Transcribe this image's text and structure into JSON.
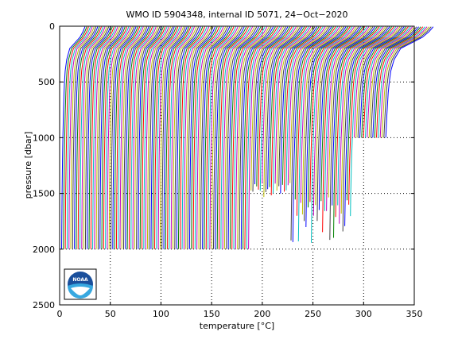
{
  "chart_data": {
    "type": "line",
    "title": "WMO ID 5904348, internal ID 5071, 24−Oct−2020",
    "xlabel": "temperature [°C]",
    "ylabel": "pressure [dbar]",
    "xlim": [
      0,
      350
    ],
    "ylim": [
      0,
      2500
    ],
    "y_reversed": true,
    "x_ticks": [
      "0",
      "50",
      "100",
      "150",
      "200",
      "250",
      "300",
      "350"
    ],
    "y_ticks": [
      "0",
      "500",
      "1000",
      "1500",
      "2000",
      "2500"
    ],
    "grid": true,
    "profile_count": 176,
    "offset_per_profile": 1.8,
    "base_profile": {
      "pressure": [
        5,
        50,
        100,
        150,
        200,
        250,
        300,
        400,
        500,
        600,
        800,
        1000,
        1200,
        1500,
        2000
      ],
      "temperature": [
        25,
        23,
        20,
        15,
        10,
        8.5,
        7,
        5.5,
        4.8,
        4.3,
        3.7,
        3.2,
        2.8,
        2.4,
        2.0
      ]
    },
    "series_colors": [
      "#0000ff",
      "#008000",
      "#ff0000",
      "#00bfbf",
      "#bf00bf",
      "#bfbf00",
      "#404040"
    ]
  },
  "logo": {
    "text": "NOAA",
    "name": "noaa-logo"
  }
}
